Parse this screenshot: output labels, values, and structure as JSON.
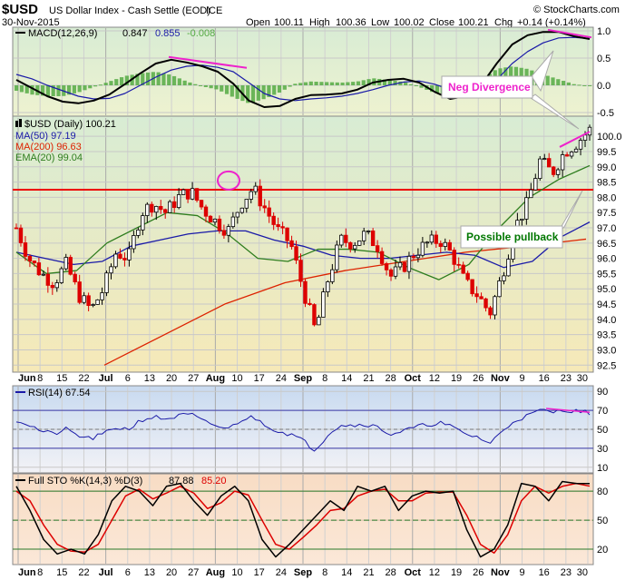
{
  "header": {
    "symbol": "$USD",
    "name": "US Dollar Index - Cash Settle (EOD)",
    "exchange": "ICE",
    "date": "30-Nov-2015",
    "ohlc": {
      "open_label": "Open",
      "open": "100.11",
      "high_label": "High",
      "high": "100.36",
      "low_label": "Low",
      "low": "100.02",
      "close_label": "Close",
      "close": "100.21",
      "chg_label": "Chg",
      "chg": "+0.14 (+0.14%)"
    },
    "brand": "© StockCharts.com"
  },
  "colors": {
    "up": "#000000",
    "down": "#dd0000",
    "ma50": "#1a1aa8",
    "ma200": "#dd2200",
    "ema20": "#2e7d1e",
    "resistance": "#ee0000",
    "annotation_magenta": "#ee22cc",
    "annotation_green": "#007700",
    "macd_hist": "#55aa44"
  },
  "x_axis": {
    "ticks": [
      "Jun",
      "8",
      "15",
      "22",
      "Jul",
      "6",
      "13",
      "20",
      "27",
      "Aug",
      "10",
      "17",
      "24",
      "Sep",
      "8",
      "14",
      "21",
      "28",
      "Oct",
      "12",
      "19",
      "26",
      "Nov",
      "9",
      "16",
      "23",
      "30"
    ],
    "month_labels": [
      "Jun",
      "Jul",
      "Aug",
      "Sep",
      "Oct",
      "Nov"
    ]
  },
  "chart_data": [
    {
      "panel": "macd",
      "type": "line",
      "legend": {
        "macd": "MACD(12,26,9)",
        "macd_value": "0.847",
        "signal_value": "0.855",
        "hist_value": "-0.008"
      },
      "ylim": [
        -0.55,
        1.05
      ],
      "y_ticks": [
        "1.0",
        "0.5",
        "0.0",
        "-0.5"
      ],
      "y_tick_values": [
        1.0,
        0.5,
        0.0,
        -0.5
      ],
      "macd": [
        0.1,
        -0.05,
        -0.2,
        -0.3,
        -0.33,
        -0.28,
        -0.17,
        0.02,
        0.22,
        0.4,
        0.47,
        0.42,
        0.35,
        0.25,
        0.03,
        -0.28,
        -0.4,
        -0.38,
        -0.25,
        -0.18,
        -0.17,
        -0.15,
        -0.08,
        0.05,
        0.1,
        0.12,
        0.05,
        -0.12,
        -0.25,
        -0.2,
        0.0,
        0.4,
        0.75,
        0.92,
        0.98,
        0.98,
        0.9,
        0.85
      ],
      "signal": [
        0.2,
        0.12,
        0.0,
        -0.1,
        -0.2,
        -0.25,
        -0.24,
        -0.15,
        0.0,
        0.15,
        0.28,
        0.35,
        0.37,
        0.33,
        0.25,
        0.05,
        -0.15,
        -0.25,
        -0.28,
        -0.25,
        -0.23,
        -0.2,
        -0.15,
        -0.08,
        0.0,
        0.06,
        0.08,
        0.02,
        -0.08,
        -0.15,
        -0.1,
        0.1,
        0.4,
        0.62,
        0.78,
        0.87,
        0.88,
        0.86
      ],
      "annotations": [
        {
          "text": "Neg Divergence"
        }
      ]
    },
    {
      "panel": "price",
      "type": "candlestick",
      "legend": {
        "price": "$USD (Daily) 100.21",
        "ma50": "MA(50) 97.19",
        "ma200": "MA(200) 96.63",
        "ema20": "EMA(20) 99.04"
      },
      "ylim": [
        92.3,
        100.6
      ],
      "y_ticks": [
        "100.0",
        "99.5",
        "99.0",
        "98.5",
        "98.0",
        "97.5",
        "97.0",
        "96.5",
        "96.0",
        "95.5",
        "95.0",
        "94.5",
        "94.0",
        "93.5",
        "93.0",
        "92.5"
      ],
      "y_tick_values": [
        100.0,
        99.5,
        99.0,
        98.5,
        98.0,
        97.5,
        97.0,
        96.5,
        96.0,
        95.5,
        95.0,
        94.5,
        94.0,
        93.5,
        93.0,
        92.5
      ],
      "close": [
        97.0,
        96.0,
        95.5,
        95.2,
        95.8,
        94.8,
        94.3,
        95.0,
        96.2,
        96.0,
        97.5,
        97.8,
        97.5,
        98.0,
        98.2,
        97.6,
        97.2,
        96.9,
        97.8,
        98.3,
        97.6,
        96.9,
        96.5,
        95.0,
        93.6,
        95.3,
        96.6,
        96.5,
        96.8,
        96.4,
        95.4,
        95.7,
        96.2,
        96.5,
        96.6,
        96.1,
        95.2,
        94.8,
        94.2,
        95.5,
        97.0,
        97.8,
        99.2,
        98.8,
        99.5,
        99.8,
        100.21
      ],
      "ma50": [
        96.2,
        96.0,
        95.8,
        95.9,
        96.4,
        96.6,
        96.8,
        96.9,
        96.9,
        96.6,
        96.4,
        96.1,
        96.0,
        96.0,
        96.1,
        96.2,
        96.1,
        95.7,
        95.9,
        96.7,
        97.19
      ],
      "ma200": [
        92.5,
        93.5,
        94.5,
        95.2,
        95.6,
        95.9,
        96.2,
        96.4,
        96.63
      ],
      "ema20": [
        96.2,
        95.5,
        95.6,
        96.5,
        97.0,
        97.5,
        97.4,
        96.8,
        96.0,
        95.9,
        96.3,
        96.3,
        96.2,
        95.7,
        95.3,
        95.8,
        97.0,
        98.0,
        98.6,
        99.04
      ],
      "resistance": 98.25,
      "annotations": [
        {
          "text": "Possible pullback"
        }
      ]
    },
    {
      "panel": "rsi",
      "type": "line",
      "legend": {
        "rsi": "RSI(14) 67.54"
      },
      "ylim": [
        5,
        95
      ],
      "y_ticks": [
        "90",
        "70",
        "50",
        "30",
        "10"
      ],
      "y_tick_values": [
        90,
        70,
        50,
        30,
        10
      ],
      "levels": [
        70,
        30
      ],
      "rsi": [
        60,
        55,
        48,
        45,
        50,
        43,
        40,
        45,
        52,
        50,
        60,
        63,
        61,
        64,
        66,
        58,
        54,
        50,
        60,
        63,
        55,
        48,
        45,
        38,
        28,
        45,
        55,
        54,
        56,
        52,
        45,
        48,
        52,
        55,
        57,
        52,
        45,
        42,
        35,
        48,
        60,
        64,
        70,
        68,
        71,
        69,
        67.54
      ]
    },
    {
      "panel": "stochastic",
      "type": "line",
      "legend": {
        "sto": "Full STO %K(14,3) %D(3)",
        "k_value": "87.88",
        "d_value": "85.20"
      },
      "ylim": [
        5,
        97
      ],
      "y_ticks": [
        "80",
        "50",
        "20"
      ],
      "y_tick_values": [
        80,
        50,
        20
      ],
      "levels": [
        80,
        20
      ],
      "k": [
        85,
        60,
        30,
        15,
        20,
        15,
        35,
        70,
        85,
        80,
        65,
        85,
        88,
        70,
        55,
        75,
        85,
        70,
        30,
        12,
        25,
        40,
        55,
        70,
        60,
        85,
        80,
        85,
        60,
        75,
        80,
        78,
        80,
        40,
        12,
        20,
        45,
        88,
        85,
        70,
        90,
        88,
        87.88
      ],
      "d": [
        80,
        70,
        45,
        25,
        18,
        17,
        25,
        50,
        75,
        82,
        72,
        78,
        85,
        78,
        62,
        68,
        80,
        76,
        50,
        25,
        20,
        32,
        45,
        60,
        62,
        75,
        80,
        82,
        70,
        70,
        78,
        79,
        79,
        55,
        25,
        16,
        35,
        70,
        85,
        78,
        85,
        88,
        85.2
      ]
    }
  ]
}
